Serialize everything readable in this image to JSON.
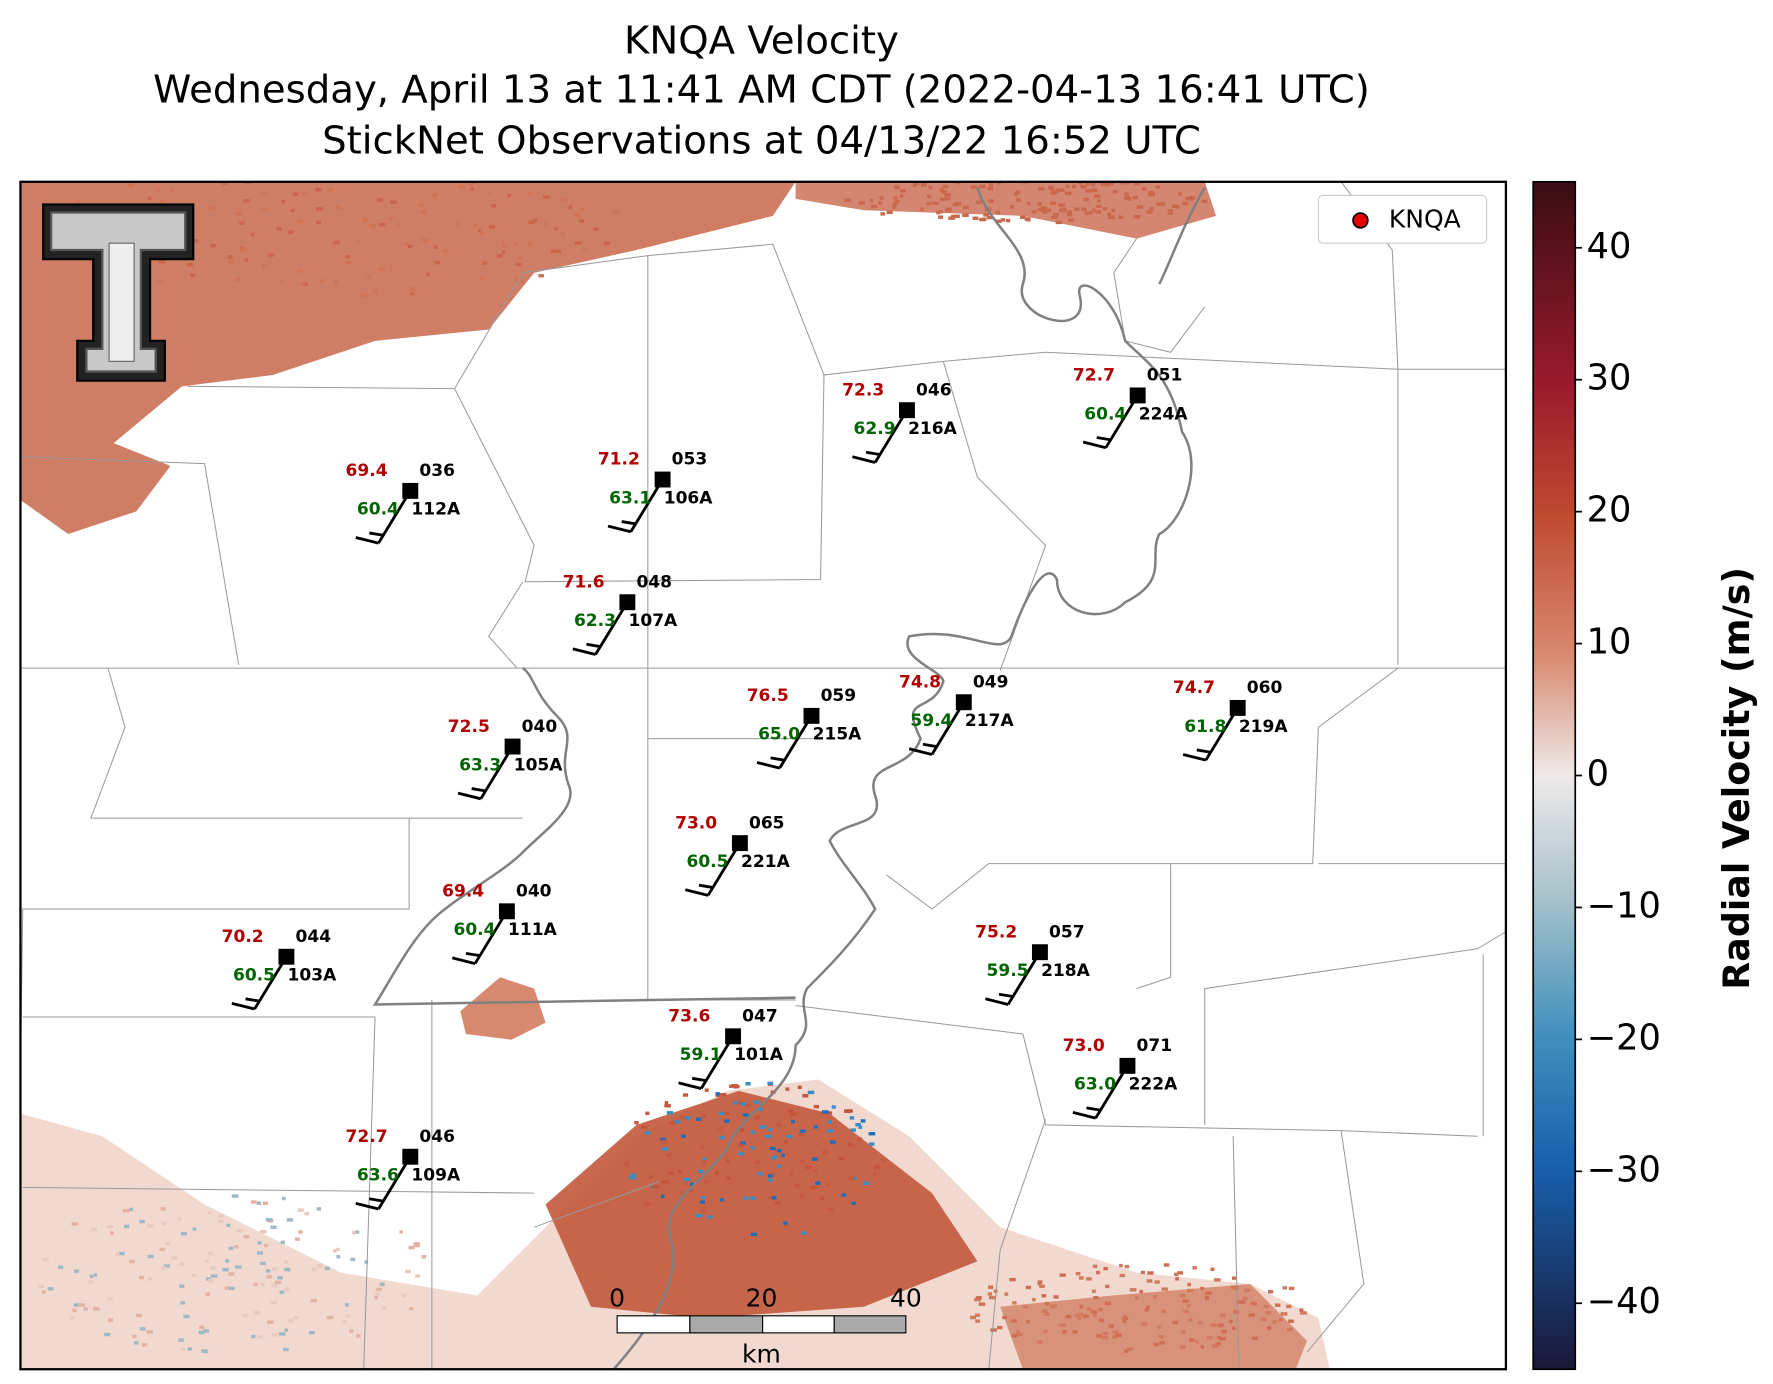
{
  "title": [
    "KNQA Velocity",
    "Wednesday, April 13 at 11:41 AM CDT (2022-04-13 16:41 UTC)",
    "StickNet Observations at 04/13/22 16:52 UTC"
  ],
  "legend": "KNQA",
  "colorbar": {
    "label": "Radial Velocity (m/s)",
    "clim": [
      -45,
      45
    ],
    "ticks": [
      40,
      30,
      20,
      10,
      0,
      {
        "value": -10,
        "label": "−10"
      },
      {
        "value": -20,
        "label": "−20"
      },
      {
        "value": -30,
        "label": "−30"
      },
      {
        "value": -40,
        "label": "−40"
      }
    ]
  },
  "scale_bar": {
    "ticks": [
      "0",
      "20",
      "40"
    ],
    "unit": "km"
  },
  "stations": [
    {
      "id": "112A",
      "temp": "69.4",
      "dew": "60.4",
      "code": "036"
    },
    {
      "id": "106A",
      "temp": "71.2",
      "dew": "63.1",
      "code": "053"
    },
    {
      "id": "216A",
      "temp": "72.3",
      "dew": "62.9",
      "code": "046"
    },
    {
      "id": "224A",
      "temp": "72.7",
      "dew": "60.4",
      "code": "051"
    },
    {
      "id": "107A",
      "temp": "71.6",
      "dew": "62.3",
      "code": "048"
    },
    {
      "id": "215A",
      "temp": "76.5",
      "dew": "65.0",
      "code": "059"
    },
    {
      "id": "217A",
      "temp": "74.8",
      "dew": "59.4",
      "code": "049"
    },
    {
      "id": "219A",
      "temp": "74.7",
      "dew": "61.8",
      "code": "060"
    },
    {
      "id": "105A",
      "temp": "72.5",
      "dew": "63.3",
      "code": "040"
    },
    {
      "id": "221A",
      "temp": "73.0",
      "dew": "60.5",
      "code": "065"
    },
    {
      "id": "111A",
      "temp": "69.4",
      "dew": "60.4",
      "code": "040"
    },
    {
      "id": "103A",
      "temp": "70.2",
      "dew": "60.5",
      "code": "044"
    },
    {
      "id": "218A",
      "temp": "75.2",
      "dew": "59.5",
      "code": "057"
    },
    {
      "id": "101A",
      "temp": "73.6",
      "dew": "59.1",
      "code": "047"
    },
    {
      "id": "222A",
      "temp": "73.0",
      "dew": "63.0",
      "code": "071"
    },
    {
      "id": "109A",
      "temp": "72.7",
      "dew": "63.6",
      "code": "046"
    }
  ]
}
